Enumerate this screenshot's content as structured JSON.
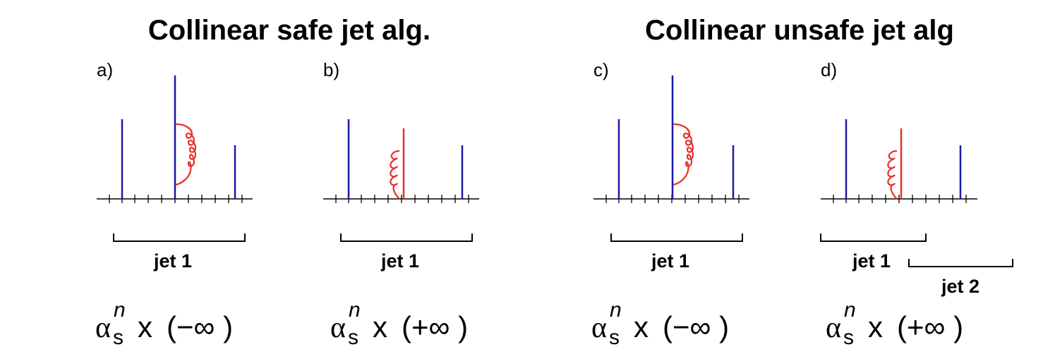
{
  "titles": {
    "left": "Collinear safe jet alg.",
    "right": "Collinear unsafe jet alg"
  },
  "panels": [
    {
      "label": "a)",
      "jets": [
        "jet 1"
      ],
      "expression": {
        "alpha": "α",
        "sub": "s",
        "sup": "n",
        "times": "x",
        "value": "(−∞ )"
      },
      "red_line": false,
      "gluon": "loop"
    },
    {
      "label": "b)",
      "jets": [
        "jet 1"
      ],
      "expression": {
        "alpha": "α",
        "sub": "s",
        "sup": "n",
        "times": "x",
        "value": "(+∞ )"
      },
      "red_line": true,
      "gluon": "emission"
    },
    {
      "label": "c)",
      "jets": [
        "jet 1"
      ],
      "expression": {
        "alpha": "α",
        "sub": "s",
        "sup": "n",
        "times": "x",
        "value": "(−∞ )"
      },
      "red_line": false,
      "gluon": "loop"
    },
    {
      "label": "d)",
      "jets": [
        "jet 1",
        "jet 2"
      ],
      "expression": {
        "alpha": "α",
        "sub": "s",
        "sup": "n",
        "times": "x",
        "value": "(+∞ )"
      },
      "red_line": true,
      "gluon": "emission"
    }
  ],
  "colors": {
    "particle": "#1a1aa6",
    "gluon": "#e8302a",
    "axis": "#000000"
  }
}
